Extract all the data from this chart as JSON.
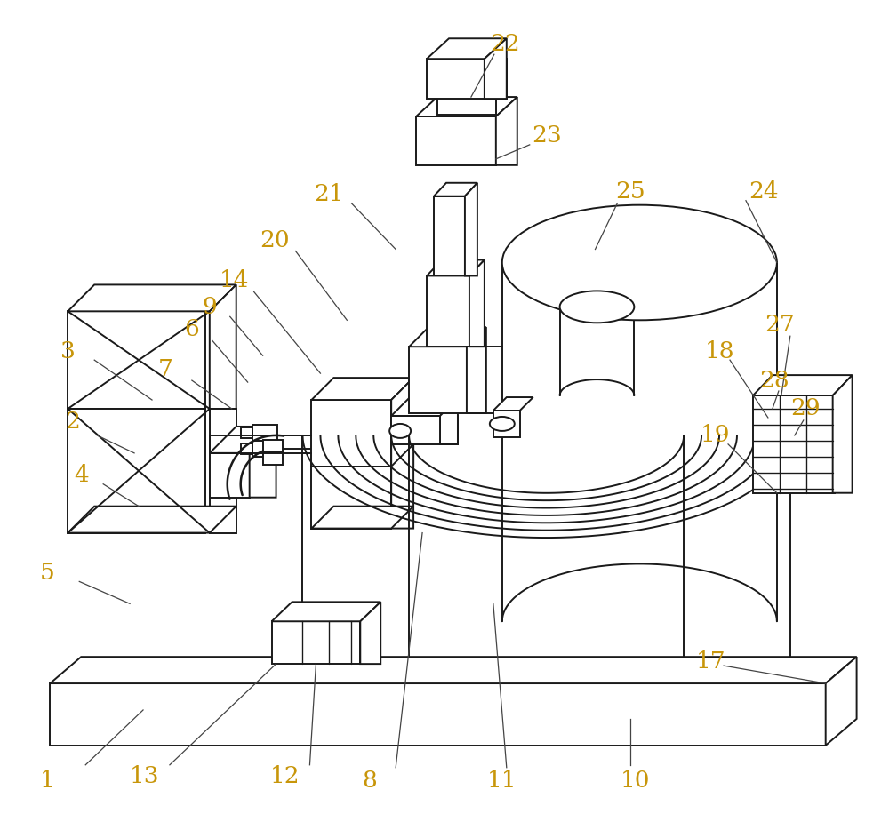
{
  "bg_color": "#ffffff",
  "line_color": "#1a1a1a",
  "label_color": "#c8960a",
  "fig_width": 10.0,
  "fig_height": 9.16,
  "dpi": 100,
  "lw": 1.4
}
